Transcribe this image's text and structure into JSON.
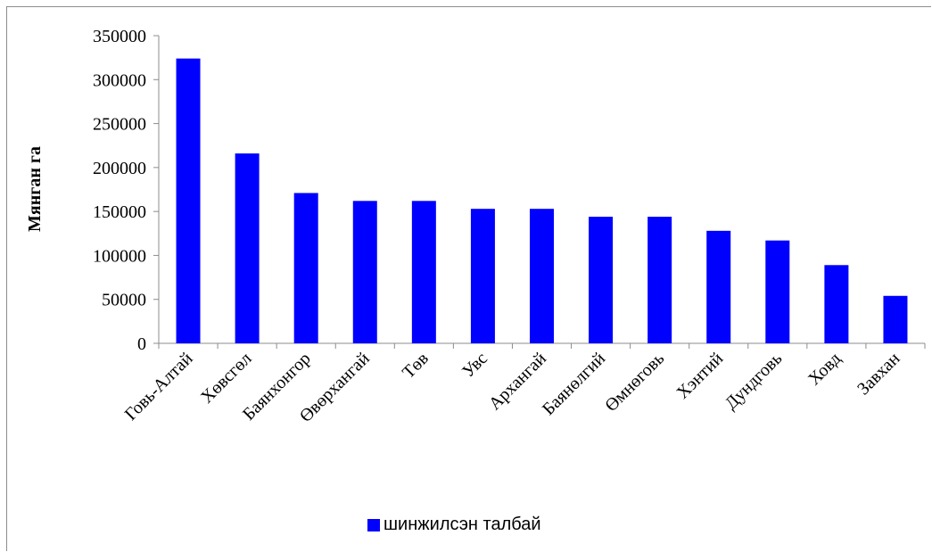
{
  "chart_data": {
    "type": "bar",
    "title": "",
    "xlabel": "",
    "ylabel": "Мянган га",
    "ylim": [
      0,
      350000
    ],
    "yticks": [
      0,
      50000,
      100000,
      150000,
      200000,
      250000,
      300000,
      350000
    ],
    "grid": false,
    "legend_position": "bottom",
    "categories": [
      "Говь-Алтай",
      "Хөвсгөл",
      "Баянхонгор",
      "Өвөрхангай",
      "Төв",
      "Увс",
      "Архангай",
      "Баянөлгий",
      "Өмнөговь",
      "Хэнтий",
      "Дундговь",
      "Ховд",
      "Завхан"
    ],
    "series": [
      {
        "name": "шинжилсэн талбай",
        "color": "#0000ff",
        "values": [
          324000,
          216000,
          171000,
          162000,
          162000,
          153000,
          153000,
          144000,
          144000,
          128000,
          117000,
          89000,
          54000
        ]
      }
    ]
  }
}
